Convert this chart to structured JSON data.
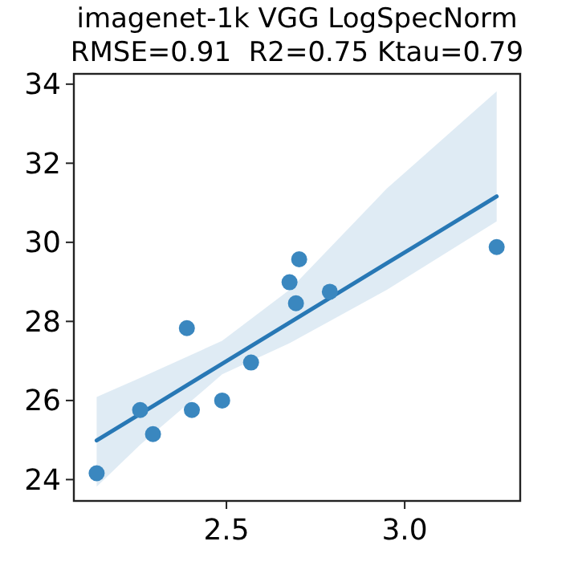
{
  "chart_data": {
    "type": "scatter",
    "title": "imagenet-1k VGG LogSpecNorm",
    "subtitle": "RMSE=0.91  R2=0.75 Ktau=0.79",
    "xlim": [
      2.072,
      3.324
    ],
    "xticks": [
      2.5,
      {
        "value": 3,
        "label": "3.0"
      }
    ],
    "ylim": [
      23.46,
      34.26
    ],
    "yticks": [
      24,
      26,
      28,
      30,
      32,
      34
    ],
    "grid": false,
    "series": [
      {
        "color": "#3a87bf",
        "marker": "circle",
        "x": [
          2.136,
          2.258,
          2.294,
          2.389,
          2.403,
          2.488,
          2.569,
          2.677,
          2.695,
          2.704,
          2.79,
          3.258
        ],
        "values": [
          24.16,
          25.76,
          25.15,
          27.83,
          25.76,
          26.0,
          26.96,
          28.99,
          28.46,
          29.57,
          28.75,
          29.88
        ]
      },
      {
        "type": "line",
        "color": "#2878b5",
        "marker": "none",
        "line_style": "solid",
        "x": [
          2.136,
          2.258,
          2.488,
          2.677,
          2.95,
          3.258
        ],
        "values": [
          24.99,
          25.66,
          26.93,
          27.97,
          29.47,
          31.16
        ],
        "lower": [
          23.82,
          24.88,
          26.66,
          27.45,
          28.8,
          30.53
        ],
        "upper": [
          26.09,
          26.57,
          27.51,
          28.8,
          31.36,
          33.82
        ]
      }
    ]
  }
}
